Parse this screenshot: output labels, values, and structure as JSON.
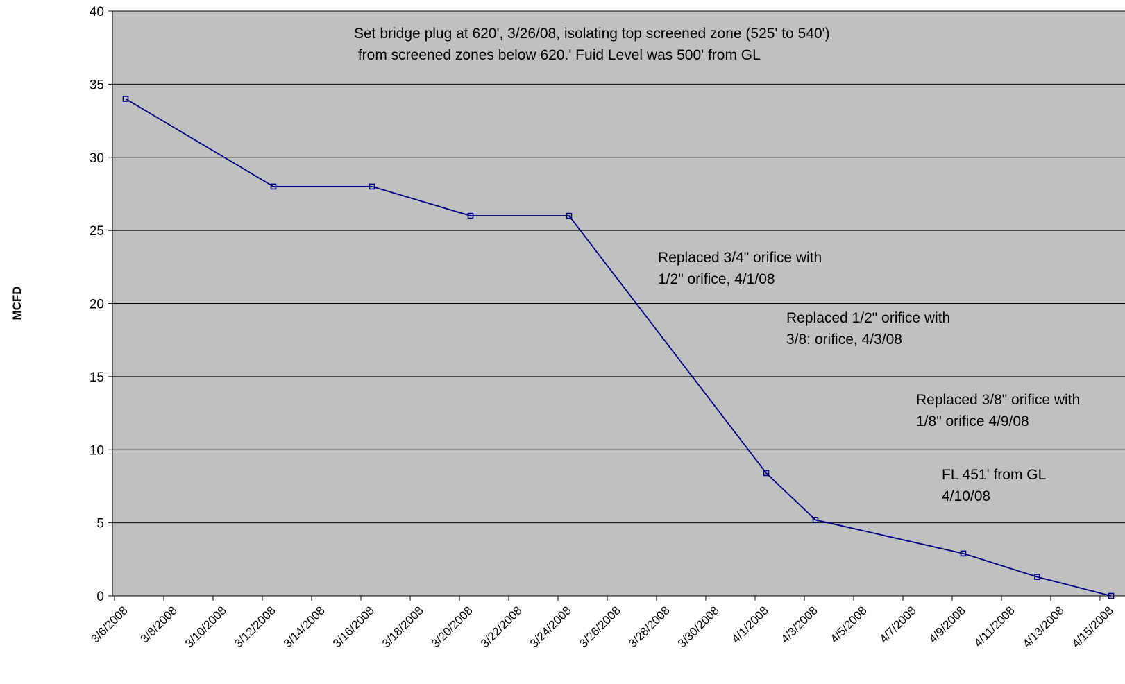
{
  "chart_data": {
    "type": "line",
    "title": "",
    "xlabel": "",
    "ylabel": "MCFD",
    "ylim": [
      0,
      40
    ],
    "y_ticks": [
      0,
      5,
      10,
      15,
      20,
      25,
      30,
      35,
      40
    ],
    "x_ticks": [
      "3/6/2008",
      "3/8/2008",
      "3/10/2008",
      "3/12/2008",
      "3/14/2008",
      "3/16/2008",
      "3/18/2008",
      "3/20/2008",
      "3/22/2008",
      "3/24/2008",
      "3/26/2008",
      "3/28/2008",
      "3/30/2008",
      "4/1/2008",
      "4/3/2008",
      "4/5/2008",
      "4/7/2008",
      "4/9/2008",
      "4/11/2008",
      "4/13/2008",
      "4/15/2008"
    ],
    "grid": true,
    "legend": "none",
    "colors": {
      "plot_background": "#c0c0c0",
      "line": "#000080",
      "gridline": "#000000"
    },
    "series": [
      {
        "x": [
          "3/6/2008",
          "3/12/2008",
          "3/16/2008",
          "3/20/2008",
          "3/24/2008",
          "4/1/2008",
          "4/3/2008",
          "4/9/2008",
          "4/12/2008",
          "4/15/2008"
        ],
        "values": [
          34,
          28,
          28,
          26,
          26,
          8.4,
          5.2,
          2.9,
          1.3,
          0
        ]
      }
    ],
    "annotations": [
      {
        "lines": [
          "Set bridge plug at 620', 3/26/08, isolating top screened zone (525' to 540')",
          " from screened zones below 620.' Fuid Level  was 500' from GL"
        ]
      },
      {
        "lines": [
          "Replaced 3/4\" orifice with",
          "1/2\" orifice, 4/1/08"
        ]
      },
      {
        "lines": [
          "Replaced 1/2\" orifice with",
          "3/8: orifice, 4/3/08"
        ]
      },
      {
        "lines": [
          "Replaced 3/8\" orifice with",
          "1/8\" orifice 4/9/08"
        ]
      },
      {
        "lines": [
          "FL 451' from GL",
          "4/10/08"
        ]
      }
    ]
  }
}
